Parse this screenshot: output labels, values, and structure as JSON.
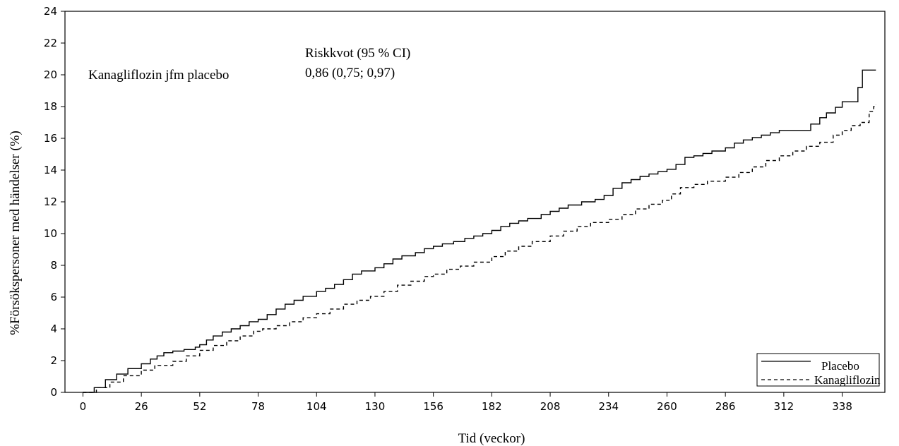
{
  "chart_data": {
    "type": "line",
    "title": "",
    "xlabel": "Tid (veckor)",
    "ylabel": "%Försökspersoner med händelser (%)",
    "xlim": [
      -8,
      357
    ],
    "ylim": [
      0,
      24
    ],
    "x_ticks": [
      0,
      26,
      52,
      78,
      104,
      130,
      156,
      182,
      208,
      234,
      260,
      286,
      312,
      338
    ],
    "y_ticks": [
      0,
      2,
      4,
      6,
      8,
      10,
      12,
      14,
      16,
      18,
      20,
      22,
      24
    ],
    "grid": false,
    "legend_position": "bottom-right",
    "annotation": {
      "label": "Kanagliflozin jfm placebo",
      "header": "Riskkvot (95 % CI)",
      "value": "0,86 (0,75; 0,97)"
    },
    "series": [
      {
        "name": "Placebo",
        "style": "solid",
        "points": [
          [
            0,
            0
          ],
          [
            5,
            0.3
          ],
          [
            10,
            0.8
          ],
          [
            15,
            1.15
          ],
          [
            20,
            1.5
          ],
          [
            26,
            1.8
          ],
          [
            30,
            2.1
          ],
          [
            33,
            2.3
          ],
          [
            36,
            2.5
          ],
          [
            40,
            2.6
          ],
          [
            45,
            2.7
          ],
          [
            50,
            2.85
          ],
          [
            52,
            3.0
          ],
          [
            55,
            3.3
          ],
          [
            58,
            3.55
          ],
          [
            62,
            3.8
          ],
          [
            66,
            4.0
          ],
          [
            70,
            4.2
          ],
          [
            74,
            4.45
          ],
          [
            78,
            4.6
          ],
          [
            82,
            4.9
          ],
          [
            86,
            5.25
          ],
          [
            90,
            5.55
          ],
          [
            94,
            5.8
          ],
          [
            98,
            6.05
          ],
          [
            104,
            6.35
          ],
          [
            108,
            6.55
          ],
          [
            112,
            6.8
          ],
          [
            116,
            7.1
          ],
          [
            120,
            7.45
          ],
          [
            124,
            7.65
          ],
          [
            130,
            7.85
          ],
          [
            134,
            8.1
          ],
          [
            138,
            8.4
          ],
          [
            142,
            8.6
          ],
          [
            148,
            8.8
          ],
          [
            152,
            9.05
          ],
          [
            156,
            9.2
          ],
          [
            160,
            9.35
          ],
          [
            165,
            9.5
          ],
          [
            170,
            9.7
          ],
          [
            174,
            9.85
          ],
          [
            178,
            10.0
          ],
          [
            182,
            10.2
          ],
          [
            186,
            10.45
          ],
          [
            190,
            10.65
          ],
          [
            194,
            10.8
          ],
          [
            198,
            10.95
          ],
          [
            204,
            11.2
          ],
          [
            208,
            11.4
          ],
          [
            212,
            11.6
          ],
          [
            216,
            11.8
          ],
          [
            222,
            12.0
          ],
          [
            228,
            12.15
          ],
          [
            232,
            12.4
          ],
          [
            236,
            12.85
          ],
          [
            240,
            13.2
          ],
          [
            244,
            13.4
          ],
          [
            248,
            13.6
          ],
          [
            252,
            13.75
          ],
          [
            256,
            13.9
          ],
          [
            260,
            14.05
          ],
          [
            264,
            14.35
          ],
          [
            268,
            14.8
          ],
          [
            272,
            14.9
          ],
          [
            276,
            15.05
          ],
          [
            280,
            15.2
          ],
          [
            286,
            15.4
          ],
          [
            290,
            15.7
          ],
          [
            294,
            15.9
          ],
          [
            298,
            16.05
          ],
          [
            302,
            16.2
          ],
          [
            306,
            16.35
          ],
          [
            310,
            16.5
          ],
          [
            314,
            16.5
          ],
          [
            320,
            16.5
          ],
          [
            324,
            16.9
          ],
          [
            328,
            17.3
          ],
          [
            331,
            17.6
          ],
          [
            335,
            17.95
          ],
          [
            338,
            18.3
          ],
          [
            343,
            18.3
          ],
          [
            345,
            19.2
          ],
          [
            347,
            20.3
          ],
          [
            353,
            20.3
          ]
        ]
      },
      {
        "name": "Kanagliflozin",
        "style": "dashed",
        "points": [
          [
            0,
            0
          ],
          [
            6,
            0.3
          ],
          [
            12,
            0.65
          ],
          [
            18,
            1.05
          ],
          [
            26,
            1.4
          ],
          [
            32,
            1.7
          ],
          [
            40,
            1.95
          ],
          [
            46,
            2.3
          ],
          [
            52,
            2.65
          ],
          [
            58,
            2.95
          ],
          [
            64,
            3.25
          ],
          [
            70,
            3.55
          ],
          [
            76,
            3.85
          ],
          [
            80,
            4.0
          ],
          [
            86,
            4.2
          ],
          [
            92,
            4.45
          ],
          [
            98,
            4.7
          ],
          [
            104,
            4.95
          ],
          [
            110,
            5.25
          ],
          [
            116,
            5.55
          ],
          [
            122,
            5.8
          ],
          [
            128,
            6.05
          ],
          [
            134,
            6.35
          ],
          [
            140,
            6.75
          ],
          [
            146,
            7.0
          ],
          [
            152,
            7.3
          ],
          [
            156,
            7.45
          ],
          [
            162,
            7.75
          ],
          [
            168,
            7.95
          ],
          [
            174,
            8.2
          ],
          [
            182,
            8.55
          ],
          [
            188,
            8.9
          ],
          [
            194,
            9.2
          ],
          [
            200,
            9.5
          ],
          [
            208,
            9.85
          ],
          [
            214,
            10.15
          ],
          [
            220,
            10.45
          ],
          [
            226,
            10.7
          ],
          [
            234,
            10.9
          ],
          [
            240,
            11.2
          ],
          [
            246,
            11.55
          ],
          [
            252,
            11.85
          ],
          [
            258,
            12.1
          ],
          [
            262,
            12.5
          ],
          [
            266,
            12.9
          ],
          [
            272,
            13.1
          ],
          [
            278,
            13.3
          ],
          [
            286,
            13.55
          ],
          [
            292,
            13.85
          ],
          [
            298,
            14.2
          ],
          [
            304,
            14.6
          ],
          [
            310,
            14.9
          ],
          [
            316,
            15.2
          ],
          [
            322,
            15.5
          ],
          [
            328,
            15.75
          ],
          [
            334,
            16.2
          ],
          [
            338,
            16.5
          ],
          [
            342,
            16.8
          ],
          [
            346,
            17.0
          ],
          [
            350,
            17.7
          ],
          [
            352,
            18.0
          ],
          [
            353,
            18.1
          ]
        ]
      }
    ]
  }
}
